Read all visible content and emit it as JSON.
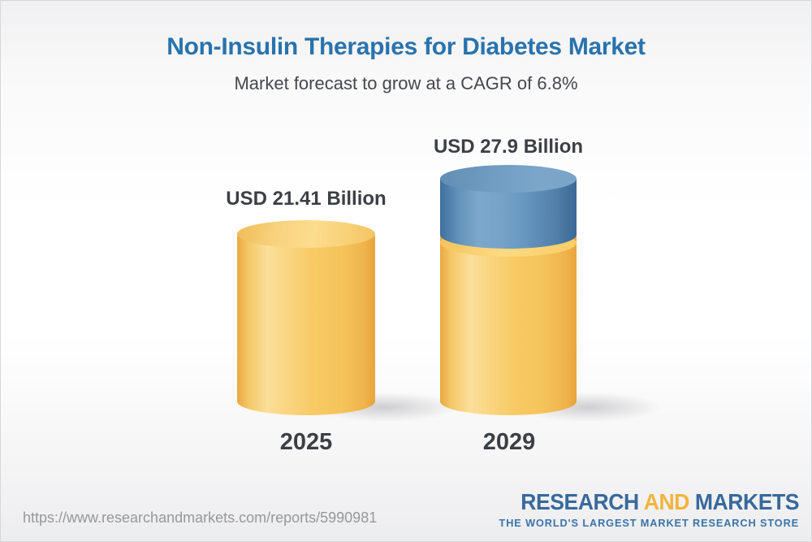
{
  "header": {
    "title": "Non-Insulin Therapies for Diabetes Market",
    "subtitle": "Market forecast to grow at a CAGR of 6.8%"
  },
  "chart_data": {
    "type": "bar",
    "bar_style": "3d-cylinder",
    "categories": [
      "2025",
      "2029"
    ],
    "values": [
      21.41,
      27.9
    ],
    "value_labels": [
      "USD 21.41 Billion",
      "USD 27.9 Billion"
    ],
    "unit": "USD Billion",
    "cagr_percent": 6.8,
    "legend_position": "none",
    "grid": false,
    "colors": {
      "base_segment": "#f5c45b",
      "growth_segment": "#6697bf",
      "label_text": "#3c3f44"
    },
    "growth_segment": {
      "bar": "2029",
      "from_value": 21.41,
      "to_value": 27.9,
      "meaning": "forecast growth above 2025 base shown in blue"
    }
  },
  "footer": {
    "report_url": "https://www.researchandmarkets.com/reports/5990981",
    "logo": {
      "part1": "RESEARCH",
      "part2": "AND",
      "part3": "MARKETS",
      "tagline": "THE WORLD'S LARGEST MARKET RESEARCH STORE",
      "blue": "#38699c",
      "yellow": "#f2b43e"
    }
  }
}
